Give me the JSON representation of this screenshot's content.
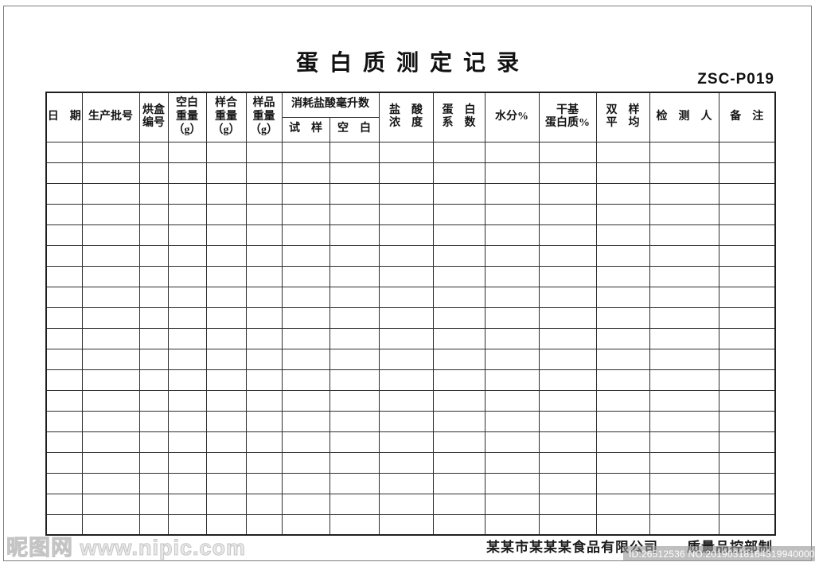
{
  "page": {
    "title": "蛋白质测定记录",
    "doc_code": "ZSC-P019",
    "footer_credit": "某某市某某某食品有限公司　　质量品控部制"
  },
  "table": {
    "body_row_count": 19,
    "header": {
      "date": "日　期",
      "batch": "生产批号",
      "box_no": "烘盒\n编号",
      "blank_weight": "空白\n重量\n（g）",
      "sample_box_weight": "样合\n重量\n（g）",
      "sample_weight": "样品\n重量\n（g）",
      "hcl_ml_group": "消耗盐酸毫升数",
      "hcl_test": "试　样",
      "hcl_blank": "空　白",
      "hcl_concentration": "盐　酸\n浓　度",
      "protein_factor": "蛋　白\n系　数",
      "moisture": "水分%",
      "dry_protein": "干基\n蛋白质%",
      "duplicate_average": "双　样\n平　均",
      "inspector": "检　测　人",
      "remarks": "备　注"
    }
  },
  "watermarks": {
    "site": "昵图网 www.nipic.com",
    "stock_id": "ID:26512536 NO:20190318164319940000"
  },
  "colors": {
    "line": "#2e2e2e",
    "text": "#1a1a1a",
    "watermark_gray": "#d6d6d6",
    "band_gray": "#979797"
  }
}
